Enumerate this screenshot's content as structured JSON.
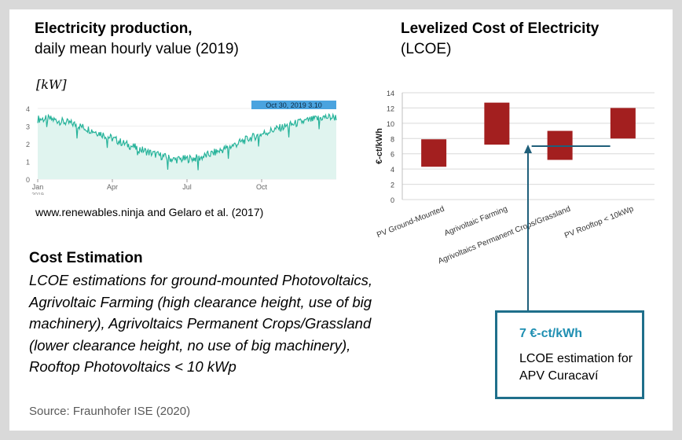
{
  "left": {
    "title": "Electricity production,",
    "subtitle": "daily mean hourly value (2019)",
    "unit_label": "[kW]",
    "attribution": "www.renewables.ninja and Gelaro et al. (2017)"
  },
  "right": {
    "title": "Levelized Cost of Electricity",
    "subtitle": "(LCOE)"
  },
  "cost": {
    "title": "Cost Estimation",
    "text": "LCOE estimations for ground-mounted Photovoltaics, Agrivoltaic Farming (high clearance height, use of big machinery), Agrivoltaics Permanent Crops/Grassland (lower clearance height, no use of big machinery), Rooftop Photovoltaics < 10 kWp",
    "source": "Source: Fraunhofer ISE (2020)"
  },
  "callout": {
    "value": "7 €-ct/kWh",
    "description": "LCOE estimation for APV Curacaví"
  },
  "chart_data": [
    {
      "type": "area",
      "ylabel": "[kW]",
      "x_tick_labels": [
        "Jan",
        "Apr",
        "Jul",
        "Oct"
      ],
      "x_tick_sublabel": "2019",
      "y_ticks": [
        0,
        1,
        2,
        3,
        4
      ],
      "ylim": [
        0,
        4
      ],
      "x": [
        "2019-01",
        "2019-02",
        "2019-03",
        "2019-04",
        "2019-05",
        "2019-06",
        "2019-07",
        "2019-08",
        "2019-09",
        "2019-10",
        "2019-11",
        "2019-12"
      ],
      "values": [
        3.4,
        3.1,
        2.6,
        2.0,
        1.5,
        1.1,
        1.2,
        1.7,
        2.3,
        2.8,
        3.2,
        3.5
      ],
      "tooltip": "Oct 30, 2019   3.10",
      "color": "#26b39a",
      "fill": "#e0f4ef"
    },
    {
      "type": "bar",
      "ylabel": "€-ct/kWh",
      "ylim": [
        0,
        14
      ],
      "y_ticks": [
        0,
        2,
        4,
        6,
        8,
        10,
        12,
        14
      ],
      "categories": [
        "PV Ground-Mounted",
        "Agrivoltaic Farming",
        "Agrivoltaics Permanent Crops/Grassland",
        "PV Rooftop < 10kWp"
      ],
      "ranges": [
        [
          4.3,
          7.9
        ],
        [
          7.2,
          12.7
        ],
        [
          5.2,
          9.0
        ],
        [
          8.0,
          12.0
        ]
      ],
      "reference_line": 7,
      "bar_color": "#a31f1f",
      "line_color": "#1f5f7a"
    }
  ]
}
